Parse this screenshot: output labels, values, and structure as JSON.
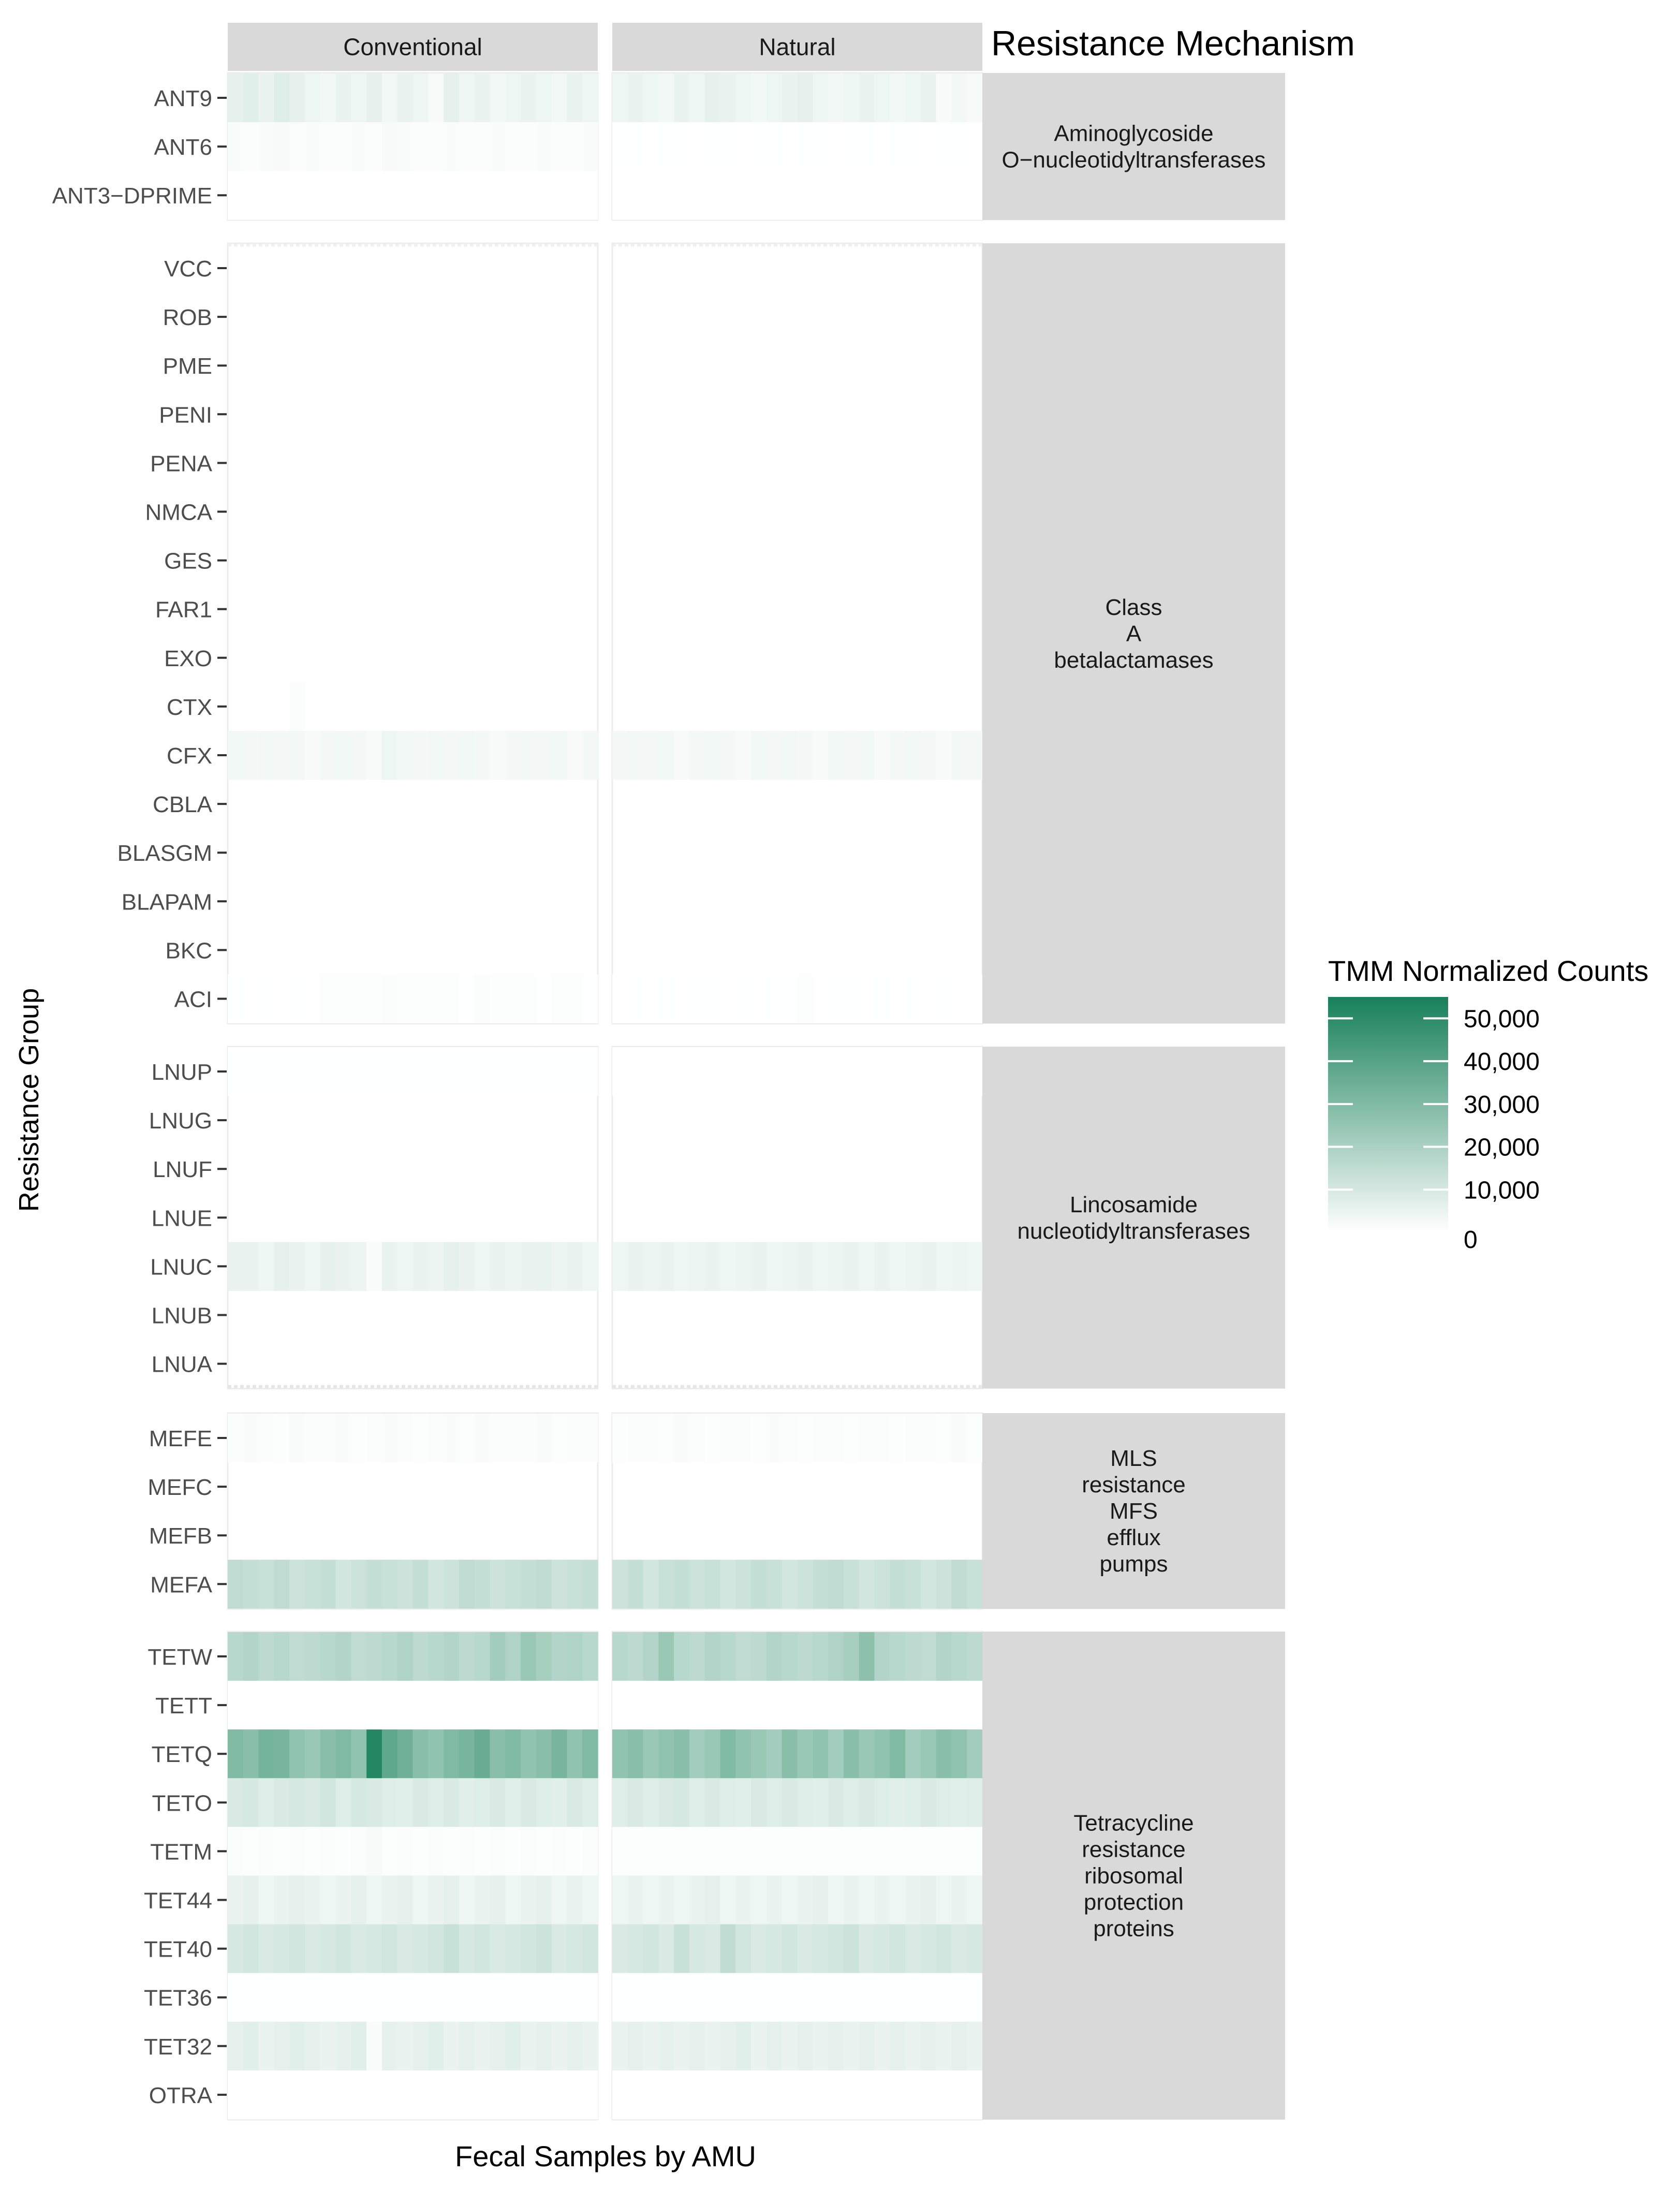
{
  "chart_data": {
    "type": "heatmap",
    "title": "",
    "xlabel": "Fecal Samples by AMU",
    "ylabel": "Resistance Group",
    "facet_columns": [
      "Conventional",
      "Natural"
    ],
    "facet_row_header": "Resistance Mechanism",
    "samples_per_facet": 24,
    "colorbar": {
      "title": "TMM Normalized Counts",
      "min": 0,
      "max": 55000,
      "low_color": "#ffffff",
      "high_color": "#17805a",
      "tick_values": [
        0,
        10000,
        20000,
        30000,
        40000,
        50000
      ],
      "tick_labels": [
        "0",
        "10,000",
        "20,000",
        "30,000",
        "40,000",
        "50,000"
      ]
    },
    "mechanisms": [
      {
        "name": "Aminoglycoside O-nucleotidyltransferases",
        "label_lines": [
          "Aminoglycoside",
          "O−nucleotidyltransferases"
        ],
        "groups": [
          "ANT9",
          "ANT6",
          "ANT3−DPRIME"
        ]
      },
      {
        "name": "Class A betalactamases",
        "label_lines": [
          "Class",
          "A",
          "betalactamases"
        ],
        "groups": [
          "VCC",
          "ROB",
          "PME",
          "PENI",
          "PENA",
          "NMCA",
          "GES",
          "FAR1",
          "EXO",
          "CTX",
          "CFX",
          "CBLA",
          "BLASGM",
          "BLAPAM",
          "BKC",
          "ACI"
        ]
      },
      {
        "name": "Lincosamide nucleotidyltransferases",
        "label_lines": [
          "Lincosamide",
          "nucleotidyltransferases"
        ],
        "groups": [
          "LNUP",
          "LNUG",
          "LNUF",
          "LNUE",
          "LNUC",
          "LNUB",
          "LNUA"
        ]
      },
      {
        "name": "MLS resistance MFS efflux pumps",
        "label_lines": [
          "MLS",
          "resistance",
          "MFS",
          "efflux",
          "pumps"
        ],
        "groups": [
          "MEFE",
          "MEFC",
          "MEFB",
          "MEFA"
        ]
      },
      {
        "name": "Tetracycline resistance ribosomal protection proteins",
        "label_lines": [
          "Tetracycline",
          "resistance",
          "ribosomal",
          "protection",
          "proteins"
        ],
        "groups": [
          "TETW",
          "TETT",
          "TETQ",
          "TETO",
          "TETM",
          "TET44",
          "TET40",
          "TET36",
          "TET32",
          "OTRA"
        ]
      }
    ],
    "values": {
      "ANT9": {
        "Conventional": [
          6000,
          7000,
          5000,
          8000,
          6000,
          4000,
          3000,
          5000,
          4000,
          6000,
          3000,
          5000,
          4000,
          2000,
          6000,
          4000,
          5000,
          3000,
          4000,
          5000,
          4000,
          3000,
          5000,
          4000
        ],
        "Natural": [
          4000,
          5000,
          4000,
          3000,
          5000,
          4000,
          6000,
          5000,
          4000,
          3000,
          4000,
          5000,
          6000,
          4000,
          3000,
          4000,
          5000,
          4000,
          3000,
          4000,
          5000,
          2000,
          3000,
          2000
        ]
      },
      "ANT6": {
        "Conventional": [
          1500,
          1000,
          1500,
          2000,
          1000,
          1500,
          1000,
          1000,
          1500,
          1000,
          2000,
          1500,
          1000,
          1000,
          1500,
          1000,
          1000,
          1500,
          1000,
          1000,
          1500,
          1000,
          1000,
          1500
        ],
        "Natural": [
          500,
          500,
          300,
          400,
          500,
          300,
          500,
          400,
          300,
          500,
          400,
          300,
          500,
          400,
          300,
          500,
          400,
          300,
          500,
          400,
          300,
          500,
          400,
          300
        ]
      },
      "ANT3−DPRIME": {
        "Conventional": [
          200,
          200,
          200,
          200,
          200,
          200,
          200,
          200,
          200,
          200,
          200,
          200,
          200,
          200,
          200,
          200,
          200,
          200,
          200,
          200,
          200,
          200,
          200,
          200
        ],
        "Natural": [
          200,
          200,
          200,
          200,
          200,
          200,
          200,
          200,
          200,
          200,
          200,
          200,
          200,
          200,
          200,
          200,
          200,
          200,
          200,
          200,
          200,
          200,
          200,
          200
        ]
      },
      "CTX": {
        "Conventional": [
          0,
          0,
          0,
          0,
          1000,
          0,
          0,
          0,
          0,
          0,
          0,
          0,
          0,
          0,
          0,
          0,
          0,
          0,
          0,
          0,
          0,
          0,
          0,
          0
        ],
        "Natural": [
          0,
          0,
          0,
          0,
          0,
          0,
          0,
          0,
          0,
          0,
          0,
          0,
          0,
          0,
          0,
          0,
          0,
          0,
          0,
          0,
          0,
          0,
          0,
          0
        ]
      },
      "CFX": {
        "Conventional": [
          3000,
          2500,
          3000,
          2500,
          3000,
          2000,
          2500,
          3000,
          2500,
          2000,
          4000,
          3000,
          2500,
          3000,
          2500,
          3000,
          2500,
          2000,
          2500,
          3000,
          2500,
          3000,
          2000,
          2500
        ],
        "Natural": [
          2500,
          3000,
          2500,
          3000,
          2000,
          2500,
          3000,
          2500,
          2000,
          3000,
          2500,
          3000,
          2500,
          2000,
          3000,
          2500,
          3000,
          2000,
          2500,
          3000,
          2500,
          2000,
          3000,
          2500
        ]
      },
      "ACI": {
        "Conventional": [
          400,
          300,
          400,
          300,
          400,
          300,
          700,
          800,
          600,
          700,
          900,
          600,
          800,
          700,
          600,
          500,
          900,
          800,
          600,
          700,
          500,
          600,
          700,
          500
        ],
        "Natural": [
          300,
          400,
          300,
          400,
          300,
          500,
          400,
          300,
          400,
          300,
          500,
          400,
          600,
          300,
          500,
          400,
          300,
          400,
          300,
          400,
          300,
          400,
          300,
          300
        ]
      },
      "LNUP": {
        "Conventional": [
          400,
          400,
          400,
          400,
          500,
          400,
          400,
          400,
          400,
          400,
          400,
          500,
          400,
          400,
          400,
          400,
          400,
          400,
          400,
          400,
          400,
          400,
          400,
          400
        ],
        "Natural": [
          300,
          300,
          300,
          300,
          300,
          300,
          300,
          300,
          300,
          300,
          300,
          300,
          300,
          300,
          300,
          300,
          300,
          300,
          300,
          300,
          300,
          300,
          300,
          300
        ]
      },
      "LNUC": {
        "Conventional": [
          5000,
          5000,
          4000,
          6000,
          5000,
          4000,
          6000,
          5000,
          4500,
          1500,
          5000,
          4000,
          5000,
          4500,
          6000,
          5000,
          4000,
          5000,
          4500,
          5000,
          5500,
          4500,
          5000,
          4000
        ],
        "Natural": [
          4000,
          5000,
          4500,
          5000,
          4000,
          4500,
          5000,
          4000,
          4500,
          5000,
          4000,
          4500,
          5000,
          4000,
          4500,
          5000,
          4000,
          5000,
          4000,
          4500,
          5000,
          4000,
          4500,
          4000
        ]
      },
      "MEFE": {
        "Conventional": [
          1000,
          1200,
          1000,
          800,
          1200,
          1000,
          1000,
          1200,
          800,
          1000,
          1200,
          1000,
          800,
          1000,
          1500,
          800,
          1200,
          1000,
          900,
          1000,
          1200,
          800,
          1000,
          900
        ],
        "Natural": [
          800,
          900,
          1000,
          800,
          1200,
          900,
          800,
          1000,
          900,
          800,
          1200,
          900,
          800,
          1000,
          900,
          800,
          1000,
          900,
          800,
          1000,
          900,
          800,
          1500,
          800
        ]
      },
      "MEFA": {
        "Conventional": [
          15000,
          14000,
          13000,
          15000,
          12000,
          13000,
          14000,
          11000,
          12000,
          14000,
          13000,
          12000,
          14000,
          11000,
          12000,
          15000,
          14000,
          12000,
          13000,
          14000,
          15000,
          12000,
          13000,
          14000
        ],
        "Natural": [
          12000,
          14000,
          11000,
          13000,
          14000,
          12000,
          13000,
          11000,
          12000,
          14000,
          13000,
          11000,
          12000,
          14000,
          15000,
          13000,
          11000,
          12000,
          14000,
          13000,
          11000,
          12000,
          15000,
          13000
        ]
      },
      "TETW": {
        "Conventional": [
          17000,
          18000,
          16000,
          17000,
          15000,
          16000,
          17000,
          18000,
          15000,
          16000,
          17000,
          19000,
          16000,
          17000,
          18000,
          16000,
          17000,
          22000,
          19000,
          24000,
          21000,
          18000,
          19000,
          17000
        ],
        "Natural": [
          17000,
          16000,
          18000,
          24000,
          17000,
          16000,
          18000,
          17000,
          15000,
          16000,
          18000,
          17000,
          16000,
          17000,
          19000,
          21000,
          27000,
          18000,
          17000,
          16000,
          15000,
          18000,
          17000,
          16000
        ]
      },
      "TETT": {
        "Conventional": [
          200,
          200,
          200,
          200,
          200,
          200,
          200,
          200,
          200,
          200,
          200,
          200,
          200,
          200,
          200,
          200,
          200,
          200,
          200,
          200,
          200,
          200,
          200,
          200
        ],
        "Natural": [
          200,
          200,
          200,
          200,
          200,
          200,
          200,
          200,
          200,
          200,
          200,
          200,
          200,
          200,
          200,
          200,
          200,
          200,
          200,
          200,
          200,
          200,
          200,
          200
        ]
      },
      "TETQ": {
        "Conventional": [
          30000,
          28000,
          33000,
          32000,
          26000,
          24000,
          28000,
          30000,
          26000,
          52000,
          38000,
          34000,
          28000,
          26000,
          30000,
          32000,
          36000,
          28000,
          30000,
          26000,
          28000,
          32000,
          26000,
          30000
        ],
        "Natural": [
          26000,
          28000,
          24000,
          26000,
          28000,
          22000,
          24000,
          30000,
          26000,
          24000,
          22000,
          28000,
          24000,
          26000,
          22000,
          28000,
          24000,
          26000,
          30000,
          22000,
          24000,
          28000,
          26000,
          22000
        ]
      },
      "TETO": {
        "Conventional": [
          9000,
          10000,
          8000,
          9000,
          10000,
          9000,
          11000,
          8000,
          10000,
          9000,
          8000,
          7000,
          9000,
          8000,
          9000,
          7000,
          8000,
          9000,
          7000,
          9000,
          8000,
          7000,
          9000,
          8000
        ],
        "Natural": [
          8000,
          9000,
          8000,
          9000,
          10000,
          8000,
          9000,
          8000,
          7000,
          9000,
          8000,
          9000,
          8000,
          7000,
          9000,
          8000,
          9000,
          8000,
          7000,
          8000,
          9000,
          8000,
          7000,
          8000
        ]
      },
      "TETM": {
        "Conventional": [
          1000,
          800,
          1000,
          800,
          1000,
          800,
          1000,
          800,
          1000,
          2000,
          800,
          1000,
          800,
          1000,
          800,
          1000,
          800,
          1000,
          800,
          1000,
          800,
          1000,
          800,
          1000
        ],
        "Natural": [
          800,
          800,
          800,
          800,
          800,
          800,
          800,
          800,
          800,
          800,
          800,
          800,
          800,
          800,
          800,
          800,
          800,
          800,
          800,
          800,
          800,
          800,
          800,
          800
        ]
      },
      "TET44": {
        "Conventional": [
          5000,
          6000,
          4000,
          5000,
          6000,
          5000,
          4000,
          5000,
          6000,
          4000,
          5000,
          6000,
          4000,
          5000,
          6000,
          4000,
          5000,
          6000,
          4000,
          5000,
          6000,
          4000,
          5000,
          4000
        ],
        "Natural": [
          4000,
          5000,
          4000,
          5000,
          4000,
          5000,
          6000,
          4000,
          5000,
          4000,
          5000,
          4000,
          5000,
          6000,
          4000,
          5000,
          4000,
          5000,
          4000,
          5000,
          6000,
          4000,
          5000,
          4000
        ]
      },
      "TET40": {
        "Conventional": [
          10000,
          11000,
          9000,
          10000,
          11000,
          9000,
          10000,
          11000,
          9000,
          10000,
          11000,
          9000,
          10000,
          11000,
          13000,
          10000,
          11000,
          9000,
          10000,
          11000,
          12000,
          9000,
          10000,
          11000
        ],
        "Natural": [
          9000,
          10000,
          11000,
          9000,
          13000,
          10000,
          9000,
          15000,
          11000,
          9000,
          10000,
          11000,
          9000,
          10000,
          11000,
          12000,
          9000,
          10000,
          11000,
          9000,
          10000,
          11000,
          9000,
          10000
        ]
      },
      "TET36": {
        "Conventional": [
          500,
          500,
          500,
          500,
          500,
          500,
          500,
          500,
          500,
          500,
          500,
          500,
          500,
          500,
          500,
          500,
          500,
          500,
          500,
          500,
          500,
          500,
          500,
          500
        ],
        "Natural": [
          400,
          400,
          400,
          400,
          400,
          400,
          400,
          400,
          400,
          400,
          400,
          400,
          400,
          400,
          400,
          400,
          400,
          400,
          400,
          400,
          400,
          400,
          400,
          400
        ]
      },
      "TET32": {
        "Conventional": [
          6000,
          7000,
          5000,
          6000,
          7000,
          6000,
          5000,
          6000,
          7000,
          1500,
          6000,
          5000,
          6000,
          7000,
          5000,
          6000,
          5000,
          6000,
          7000,
          5000,
          6000,
          5000,
          6000,
          5000
        ],
        "Natural": [
          5000,
          6000,
          5000,
          6000,
          5000,
          6000,
          5000,
          6000,
          7000,
          5000,
          6000,
          5000,
          6000,
          5000,
          6000,
          5000,
          6000,
          5000,
          6000,
          5000,
          6000,
          5000,
          6000,
          5000
        ]
      },
      "OTRA": {
        "Conventional": [
          300,
          300,
          300,
          300,
          300,
          300,
          300,
          300,
          300,
          300,
          300,
          300,
          300,
          300,
          300,
          300,
          300,
          300,
          300,
          300,
          300,
          300,
          300,
          300
        ],
        "Natural": [
          200,
          200,
          200,
          200,
          200,
          200,
          200,
          200,
          200,
          200,
          200,
          200,
          200,
          200,
          200,
          200,
          200,
          200,
          200,
          200,
          200,
          200,
          200,
          200
        ]
      }
    }
  }
}
